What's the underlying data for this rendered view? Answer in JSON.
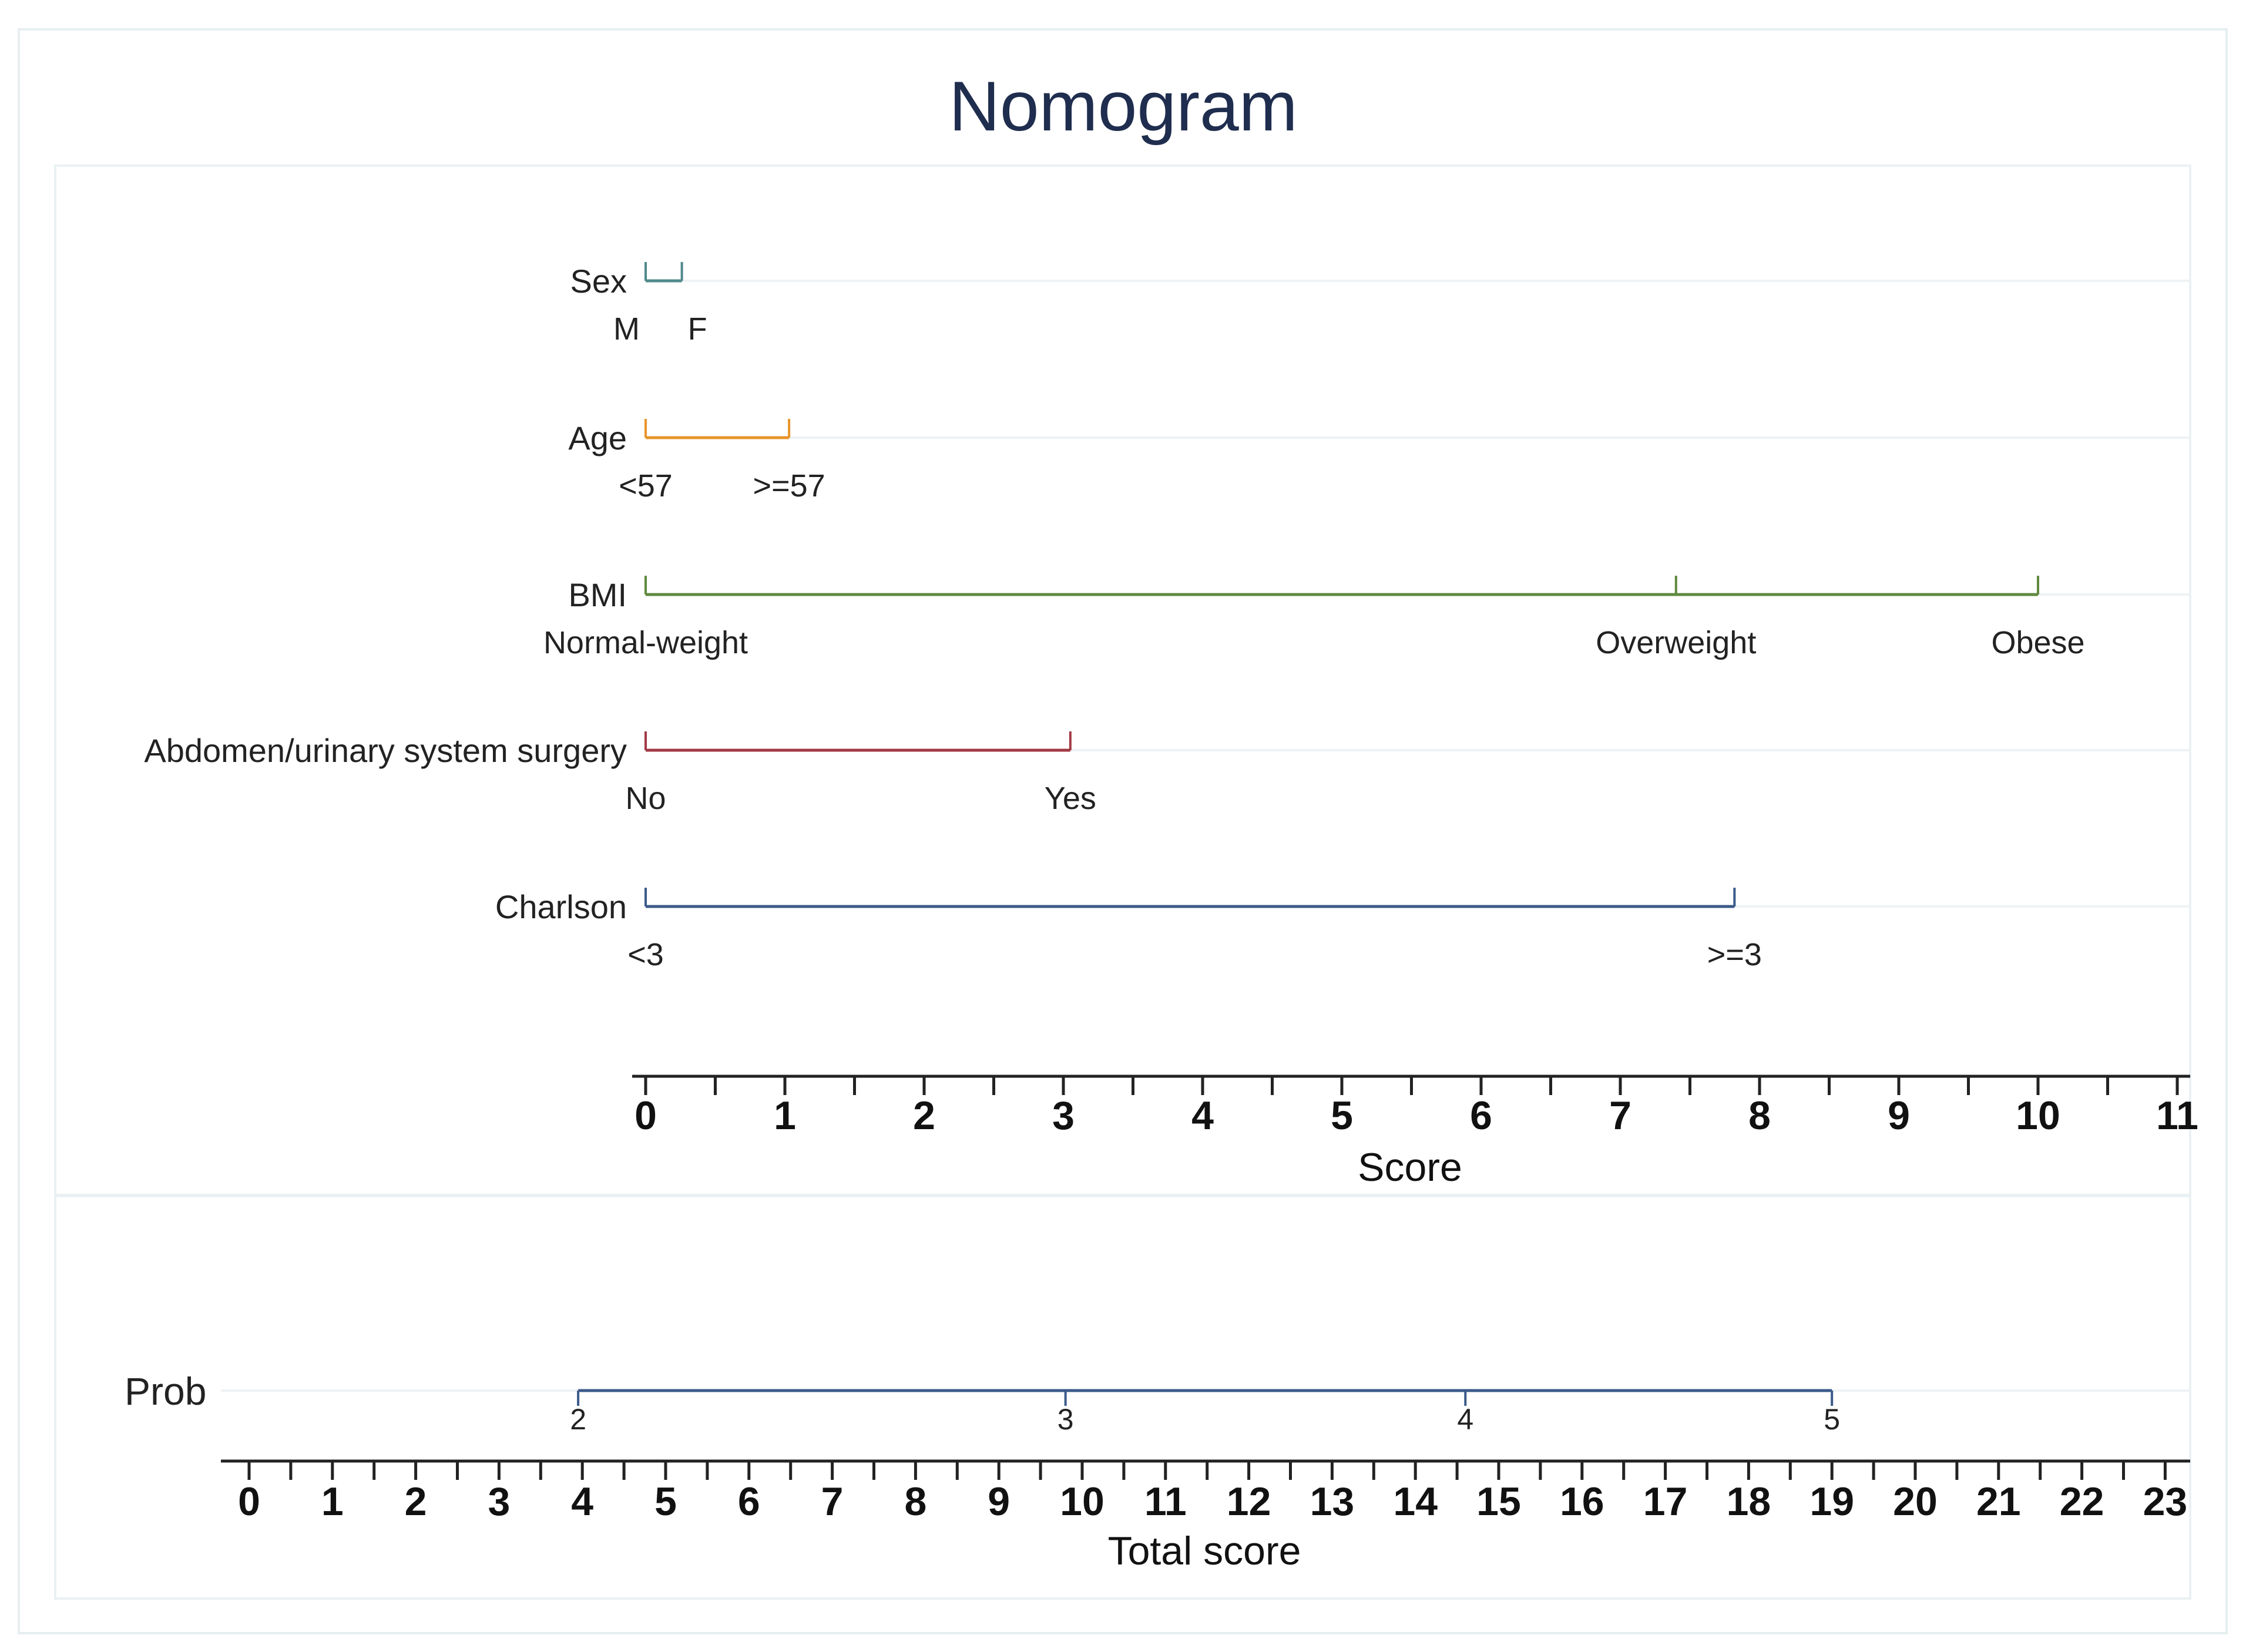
{
  "chart_data": {
    "type": "nomogram",
    "title": "Nomogram",
    "variables": [
      {
        "name": "Sex",
        "color": "#4f8a8b",
        "levels": [
          {
            "label": "M",
            "points": 0
          },
          {
            "label": "F",
            "points": 0.26
          }
        ]
      },
      {
        "name": "Age",
        "color": "#e8942a",
        "levels": [
          {
            "label": "<57",
            "points": 0
          },
          {
            "label": ">=57",
            "points": 1.03
          }
        ]
      },
      {
        "name": "BMI",
        "color": "#5e8a3e",
        "levels": [
          {
            "label": "Normal-weight",
            "points": 0
          },
          {
            "label": "Overweight",
            "points": 7.4
          },
          {
            "label": "Obese",
            "points": 10
          }
        ]
      },
      {
        "name": "Abdomen/urinary system surgery",
        "color": "#a13a44",
        "levels": [
          {
            "label": "No",
            "points": 0
          },
          {
            "label": "Yes",
            "points": 3.05
          }
        ]
      },
      {
        "name": "Charlson",
        "color": "#3b5a8a",
        "levels": [
          {
            "label": "<3",
            "points": 0
          },
          {
            "label": ">=3",
            "points": 7.82
          }
        ]
      }
    ],
    "score_axis": {
      "label": "Score",
      "range": [
        0,
        11
      ],
      "ticks": [
        "0",
        "1",
        "2",
        "3",
        "4",
        "5",
        "6",
        "7",
        "8",
        "9",
        "10",
        "11"
      ]
    },
    "prob": {
      "label": "Prob",
      "color": "#3b5a8a",
      "ticks": [
        {
          "label": "2",
          "total": 3.95
        },
        {
          "label": "3",
          "total": 9.8
        },
        {
          "label": "4",
          "total": 14.6
        },
        {
          "label": "5",
          "total": 19.0
        }
      ]
    },
    "total_axis": {
      "label": "Total score",
      "range": [
        0,
        23
      ],
      "ticks": [
        "0",
        "1",
        "2",
        "3",
        "4",
        "5",
        "6",
        "7",
        "8",
        "9",
        "10",
        "11",
        "12",
        "13",
        "14",
        "15",
        "16",
        "17",
        "18",
        "19",
        "20",
        "21",
        "22",
        "23"
      ]
    }
  }
}
